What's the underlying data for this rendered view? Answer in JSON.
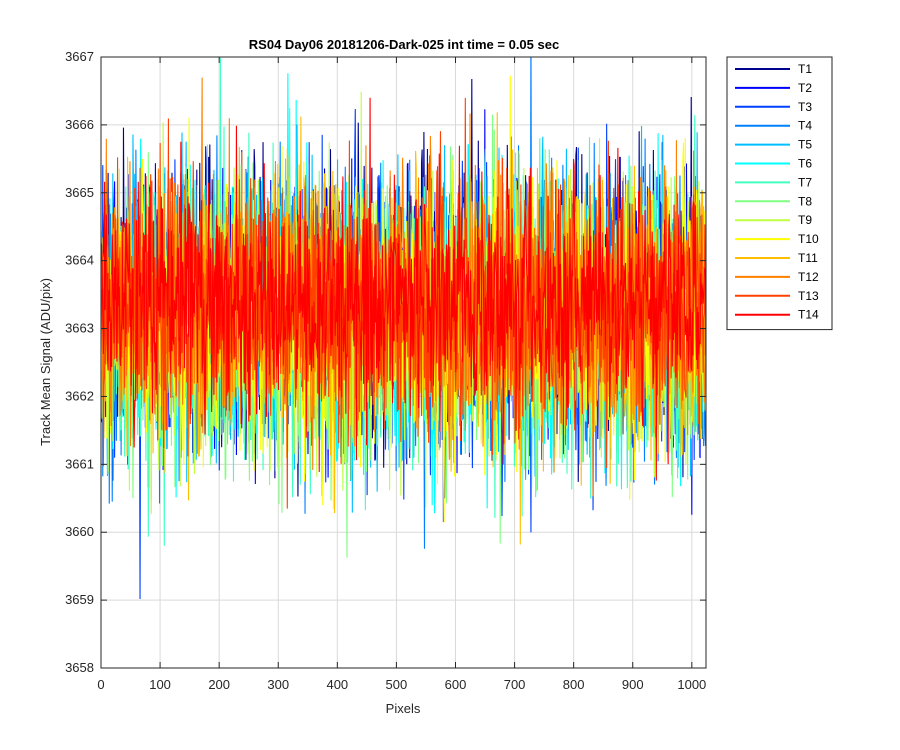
{
  "chart_data": {
    "type": "line",
    "title": "RS04 Day06 20181206-Dark-025 int time = 0.05 sec",
    "xlabel": "Pixels",
    "ylabel": "Track Mean Signal (ADU/pix)",
    "xlim": [
      0,
      1024
    ],
    "ylim": [
      3658,
      3667
    ],
    "x_ticks": [
      "0",
      "100",
      "200",
      "300",
      "400",
      "500",
      "600",
      "700",
      "800",
      "900",
      "1000"
    ],
    "y_ticks": [
      "3658",
      "3659",
      "3660",
      "3661",
      "3662",
      "3663",
      "3664",
      "3665",
      "3666",
      "3667"
    ],
    "grid": true,
    "legend_position": "outside-top-right",
    "x_points": 1024,
    "series": [
      {
        "name": "T1",
        "color": "#00008f",
        "mean": 3663.3,
        "std": 1.0
      },
      {
        "name": "T2",
        "color": "#0000ff",
        "mean": 3663.3,
        "std": 1.0
      },
      {
        "name": "T3",
        "color": "#0040ff",
        "mean": 3663.2,
        "std": 1.0
      },
      {
        "name": "T4",
        "color": "#0080ff",
        "mean": 3663.2,
        "std": 1.0
      },
      {
        "name": "T5",
        "color": "#00bfff",
        "mean": 3663.2,
        "std": 1.0
      },
      {
        "name": "T6",
        "color": "#00ffff",
        "mean": 3663.1,
        "std": 1.0
      },
      {
        "name": "T7",
        "color": "#40ffbf",
        "mean": 3663.1,
        "std": 1.0
      },
      {
        "name": "T8",
        "color": "#80ff80",
        "mean": 3663.1,
        "std": 1.0
      },
      {
        "name": "T9",
        "color": "#bfff40",
        "mean": 3663.1,
        "std": 1.0
      },
      {
        "name": "T10",
        "color": "#ffff00",
        "mean": 3663.2,
        "std": 0.95
      },
      {
        "name": "T11",
        "color": "#ffbf00",
        "mean": 3663.3,
        "std": 0.95
      },
      {
        "name": "T12",
        "color": "#ff8000",
        "mean": 3663.3,
        "std": 0.95
      },
      {
        "name": "T13",
        "color": "#ff4000",
        "mean": 3663.3,
        "std": 0.9
      },
      {
        "name": "T14",
        "color": "#ff0000",
        "mean": 3663.4,
        "std": 0.85
      }
    ]
  }
}
